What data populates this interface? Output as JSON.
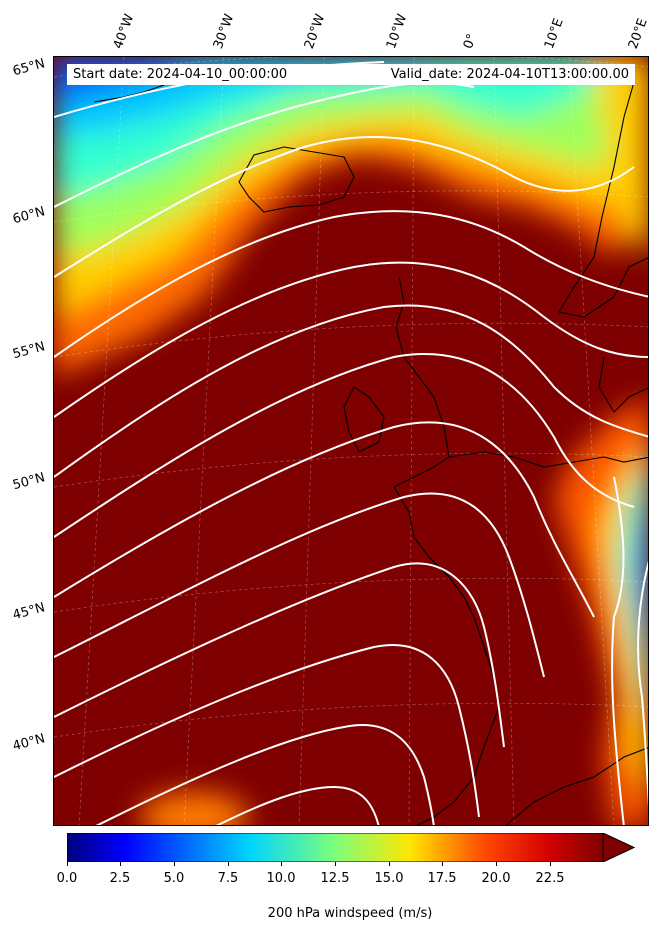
{
  "map": {
    "start_label": "Start date: 2024-04-10_00:00:00",
    "valid_label": "Valid_date: 2024-04-10T13:00:00.00",
    "variable": "200 hPa windspeed",
    "field_type": "filled contours of wind speed with white streamlines",
    "lon_labels": [
      "40°W",
      "30°W",
      "20°W",
      "10°W",
      "0°",
      "10°E",
      "20°E"
    ],
    "lat_labels": [
      "65°N",
      "60°N",
      "55°N",
      "50°N",
      "45°N",
      "40°N"
    ],
    "coastline_color": "#000000",
    "streamline_color": "#ffffff",
    "colormap": "jet"
  },
  "colorbar": {
    "label": "200 hPa windspeed (m/s)",
    "ticks": [
      "0.0",
      "2.5",
      "5.0",
      "7.5",
      "10.0",
      "12.5",
      "15.0",
      "17.5",
      "20.0",
      "22.5"
    ],
    "min": 0,
    "max": 25,
    "extend": "max"
  }
}
